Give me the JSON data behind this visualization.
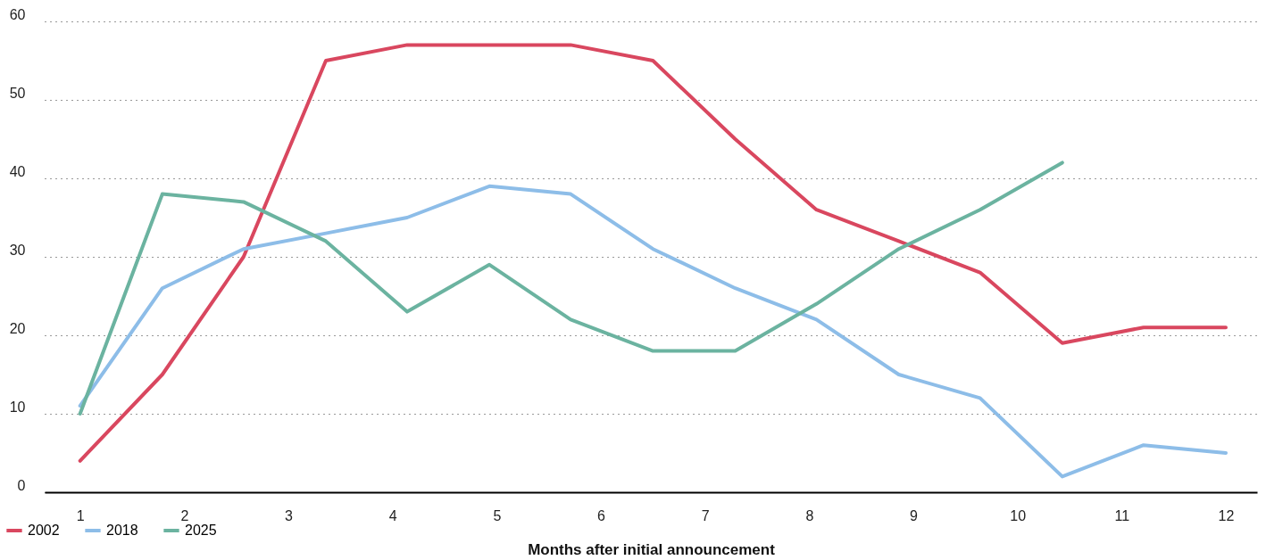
{
  "chart_data": {
    "type": "line",
    "xlabel": "Months after initial announcement",
    "x": [
      1,
      1.79,
      2.57,
      3.36,
      4.14,
      4.93,
      5.71,
      6.5,
      7.29,
      8.07,
      8.86,
      9.64,
      10.43,
      11.21,
      12
    ],
    "series": [
      {
        "name": "2002",
        "color": "#d9475f",
        "values": [
          4,
          15,
          30,
          55,
          57,
          57,
          57,
          55,
          45,
          36,
          32,
          28,
          19,
          21,
          21
        ]
      },
      {
        "name": "2018",
        "color": "#8dbde8",
        "values": [
          11,
          26,
          31,
          33,
          35,
          39,
          38,
          31,
          26,
          22,
          15,
          12,
          2,
          6,
          5
        ]
      },
      {
        "name": "2025",
        "color": "#6bb3a0",
        "values": [
          10,
          38,
          37,
          32,
          23,
          29,
          22,
          18,
          18,
          24,
          31,
          36,
          42,
          null,
          null
        ]
      }
    ],
    "xlim": [
      0.66,
      12.3
    ],
    "xticks": [
      1,
      2,
      3,
      4,
      5,
      6,
      7,
      8,
      9,
      10,
      11,
      12
    ],
    "ylim": [
      0,
      60
    ],
    "yticks": [
      0,
      10,
      20,
      30,
      40,
      50,
      60
    ],
    "grid": "y",
    "legend": "bottom left",
    "line_style": "solid"
  }
}
